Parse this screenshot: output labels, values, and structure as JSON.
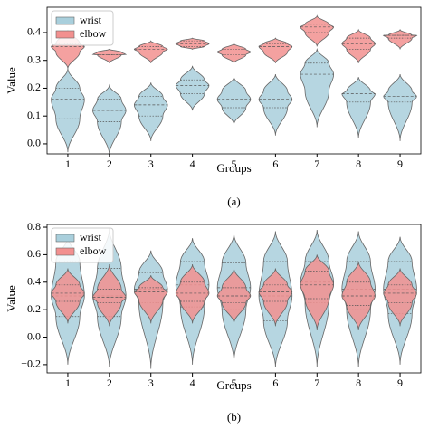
{
  "chart_data": [
    {
      "type": "violin",
      "xlabel": "Groups",
      "ylabel": "Value",
      "caption": "(a)",
      "categories": [
        "1",
        "2",
        "3",
        "4",
        "5",
        "6",
        "7",
        "8",
        "9"
      ],
      "ylim": [
        -0.036,
        0.491
      ],
      "yticks": [
        {
          "value": 0,
          "label": "0.0"
        },
        0.1,
        0.2,
        0.3,
        0.4
      ],
      "legend": "upper left",
      "series": [
        {
          "name": "wrist",
          "color": "#a9cfdc",
          "values": [
            {
              "min": -0.03,
              "q1": 0.09,
              "median": 0.16,
              "q3": 0.2,
              "max": 0.27
            },
            {
              "min": -0.04,
              "q1": 0.08,
              "median": 0.12,
              "q3": 0.16,
              "max": 0.21
            },
            {
              "min": 0.01,
              "q1": 0.1,
              "median": 0.14,
              "q3": 0.17,
              "max": 0.22
            },
            {
              "min": 0.12,
              "q1": 0.18,
              "median": 0.21,
              "q3": 0.23,
              "max": 0.28
            },
            {
              "min": 0.07,
              "q1": 0.13,
              "median": 0.16,
              "q3": 0.19,
              "max": 0.24
            },
            {
              "min": 0.03,
              "q1": 0.13,
              "median": 0.16,
              "q3": 0.19,
              "max": 0.25
            },
            {
              "min": 0.06,
              "q1": 0.19,
              "median": 0.25,
              "q3": 0.29,
              "max": 0.34
            },
            {
              "min": 0.02,
              "q1": 0.15,
              "median": 0.18,
              "q3": 0.19,
              "max": 0.24
            },
            {
              "min": 0.01,
              "q1": 0.15,
              "median": 0.17,
              "q3": 0.19,
              "max": 0.25
            }
          ]
        },
        {
          "name": "elbow",
          "color": "#f2908f",
          "values": [
            {
              "min": 0.27,
              "q1": 0.33,
              "median": 0.35,
              "q3": 0.36,
              "max": 0.41
            },
            {
              "min": 0.29,
              "q1": 0.32,
              "median": 0.32,
              "q3": 0.33,
              "max": 0.34
            },
            {
              "min": 0.29,
              "q1": 0.33,
              "median": 0.34,
              "q3": 0.35,
              "max": 0.37
            },
            {
              "min": 0.34,
              "q1": 0.35,
              "median": 0.36,
              "q3": 0.37,
              "max": 0.38
            },
            {
              "min": 0.29,
              "q1": 0.32,
              "median": 0.33,
              "q3": 0.34,
              "max": 0.36
            },
            {
              "min": 0.29,
              "q1": 0.33,
              "median": 0.35,
              "q3": 0.36,
              "max": 0.38
            },
            {
              "min": 0.35,
              "q1": 0.4,
              "median": 0.42,
              "q3": 0.43,
              "max": 0.46
            },
            {
              "min": 0.29,
              "q1": 0.34,
              "median": 0.36,
              "q3": 0.38,
              "max": 0.41
            },
            {
              "min": 0.34,
              "q1": 0.38,
              "median": 0.39,
              "q3": 0.39,
              "max": 0.41
            }
          ]
        }
      ]
    },
    {
      "type": "violin",
      "xlabel": "Groups",
      "ylabel": "Value",
      "caption": "(b)",
      "categories": [
        "1",
        "2",
        "3",
        "4",
        "5",
        "6",
        "7",
        "8",
        "9"
      ],
      "ylim": [
        -0.26,
        0.82
      ],
      "yticks": [
        {
          "value": -0.2,
          "label": "−0.2"
        },
        {
          "value": 0,
          "label": "0.0"
        },
        0.2,
        0.4,
        0.6,
        0.8
      ],
      "legend": "upper left",
      "series": [
        {
          "name": "wrist",
          "color": "#a9cfdc",
          "values": [
            {
              "min": -0.2,
              "q1": 0.15,
              "median": 0.3,
              "q3": 0.55,
              "max": 0.73
            },
            {
              "min": -0.22,
              "q1": 0.15,
              "median": 0.3,
              "q3": 0.5,
              "max": 0.79
            },
            {
              "min": -0.23,
              "q1": 0.25,
              "median": 0.35,
              "q3": 0.47,
              "max": 0.63
            },
            {
              "min": -0.2,
              "q1": 0.22,
              "median": 0.38,
              "q3": 0.55,
              "max": 0.72
            },
            {
              "min": -0.18,
              "q1": 0.2,
              "median": 0.36,
              "q3": 0.54,
              "max": 0.75
            },
            {
              "min": -0.22,
              "q1": 0.12,
              "median": 0.3,
              "q3": 0.55,
              "max": 0.77
            },
            {
              "min": -0.22,
              "q1": 0.25,
              "median": 0.4,
              "q3": 0.55,
              "max": 0.78
            },
            {
              "min": -0.22,
              "q1": 0.2,
              "median": 0.35,
              "q3": 0.55,
              "max": 0.77
            },
            {
              "min": -0.2,
              "q1": 0.17,
              "median": 0.35,
              "q3": 0.55,
              "max": 0.73
            }
          ]
        },
        {
          "name": "elbow",
          "color": "#f2908f",
          "values": [
            {
              "min": 0.1,
              "q1": 0.26,
              "median": 0.32,
              "q3": 0.38,
              "max": 0.5
            },
            {
              "min": 0.08,
              "q1": 0.25,
              "median": 0.29,
              "q3": 0.35,
              "max": 0.53
            },
            {
              "min": 0.1,
              "q1": 0.27,
              "median": 0.33,
              "q3": 0.36,
              "max": 0.45
            },
            {
              "min": 0.1,
              "q1": 0.26,
              "median": 0.32,
              "q3": 0.4,
              "max": 0.53
            },
            {
              "min": 0.1,
              "q1": 0.25,
              "median": 0.3,
              "q3": 0.36,
              "max": 0.5
            },
            {
              "min": 0.08,
              "q1": 0.26,
              "median": 0.33,
              "q3": 0.38,
              "max": 0.5
            },
            {
              "min": 0.05,
              "q1": 0.28,
              "median": 0.38,
              "q3": 0.48,
              "max": 0.6
            },
            {
              "min": 0.05,
              "q1": 0.23,
              "median": 0.3,
              "q3": 0.4,
              "max": 0.55
            },
            {
              "min": 0.08,
              "q1": 0.25,
              "median": 0.32,
              "q3": 0.38,
              "max": 0.5
            }
          ]
        }
      ]
    }
  ]
}
